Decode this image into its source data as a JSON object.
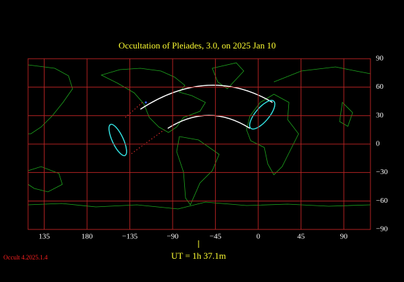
{
  "chart_data": {
    "type": "map",
    "title": "Occultation  of  Pleiades, 3.0, on 2025 Jan 10",
    "time_label": "UT =  1h 37.1m",
    "footer": "Occult 4.2025.1.4",
    "xlim": [
      118,
      478
    ],
    "ylim": [
      -90,
      90
    ],
    "xticks": [
      135,
      180,
      {
        "value": 225,
        "label": "−135"
      },
      {
        "value": 270,
        "label": "−90"
      },
      {
        "value": 315,
        "label": "−45"
      },
      {
        "value": 360,
        "label": "0"
      },
      {
        "value": 405,
        "label": "45"
      },
      {
        "value": 450,
        "label": "90"
      }
    ],
    "yticks": [
      90,
      60,
      30,
      0,
      {
        "value": -30,
        "label": "−30"
      },
      {
        "value": -60,
        "label": "−60"
      },
      {
        "value": -90,
        "label": "−90"
      }
    ],
    "grid": true,
    "grid_color": "#b22222"
  }
}
